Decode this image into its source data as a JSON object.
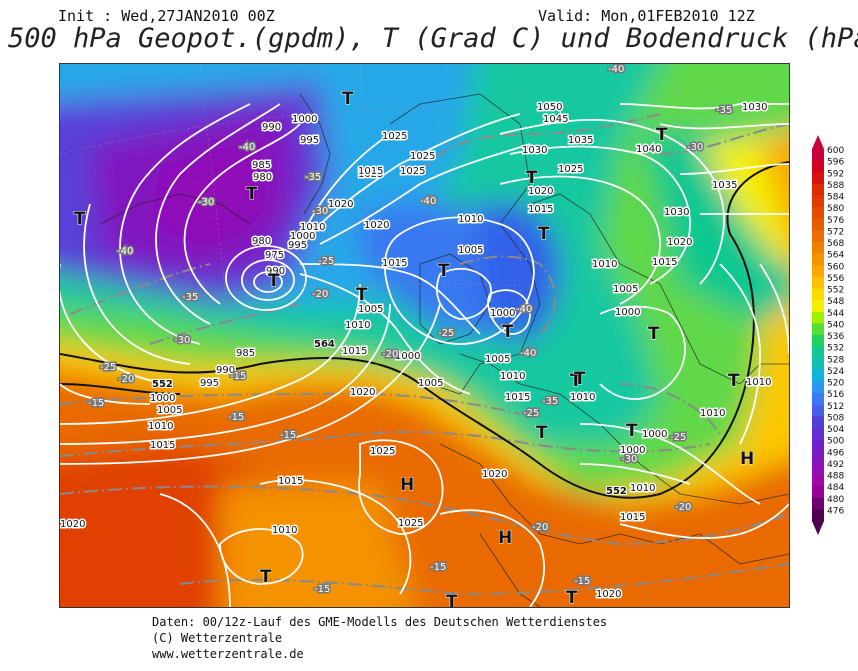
{
  "header": {
    "init": "Init : Wed,27JAN2010 00Z",
    "valid": "Valid: Mon,01FEB2010 12Z",
    "title": "500 hPa Geopot.(gpdm), T (Grad C) und Bodendruck (hPa)"
  },
  "legend": {
    "values": [
      "600",
      "596",
      "592",
      "588",
      "584",
      "580",
      "576",
      "572",
      "568",
      "564",
      "560",
      "556",
      "552",
      "548",
      "544",
      "540",
      "536",
      "532",
      "528",
      "524",
      "520",
      "516",
      "512",
      "508",
      "504",
      "500",
      "496",
      "492",
      "488",
      "484",
      "480",
      "476"
    ],
    "colors": [
      "#c8003c",
      "#d0001e",
      "#d81010",
      "#de2a00",
      "#e03a00",
      "#e44c00",
      "#e85c00",
      "#ec6e00",
      "#f08000",
      "#f49200",
      "#f8a800",
      "#fcc000",
      "#fcdc00",
      "#f4f000",
      "#a0f000",
      "#50e030",
      "#20d060",
      "#10c890",
      "#10c0b8",
      "#10b4d8",
      "#2898f0",
      "#3c78f0",
      "#4860e8",
      "#5040d8",
      "#6030d0",
      "#7020c8",
      "#8018c0",
      "#9010b8",
      "#a008a8",
      "#980098",
      "#700070",
      "#500050"
    ]
  },
  "map": {
    "pressure_labels": [
      {
        "text": "1000",
        "lx": 232,
        "ly": 58
      },
      {
        "text": "995",
        "lx": 240,
        "ly": 79
      },
      {
        "text": "990",
        "lx": 202,
        "ly": 66
      },
      {
        "text": "985",
        "lx": 192,
        "ly": 104
      },
      {
        "text": "980",
        "lx": 193,
        "ly": 116
      },
      {
        "text": "980",
        "lx": 192,
        "ly": 180
      },
      {
        "text": "975",
        "lx": 205,
        "ly": 194
      },
      {
        "text": "990",
        "lx": 206,
        "ly": 210
      },
      {
        "text": "995",
        "lx": 228,
        "ly": 184
      },
      {
        "text": "1000",
        "lx": 230,
        "ly": 175
      },
      {
        "text": "1010",
        "lx": 240,
        "ly": 166
      },
      {
        "text": "1020",
        "lx": 268,
        "ly": 143
      },
      {
        "text": "1025",
        "lx": 298,
        "ly": 113
      },
      {
        "text": "1015",
        "lx": 298,
        "ly": 110
      },
      {
        "text": "1025",
        "lx": 322,
        "ly": 75
      },
      {
        "text": "1025",
        "lx": 350,
        "ly": 95
      },
      {
        "text": "1025",
        "lx": 340,
        "ly": 110
      },
      {
        "text": "1020",
        "lx": 304,
        "ly": 164
      },
      {
        "text": "1015",
        "lx": 322,
        "ly": 202
      },
      {
        "text": "1010",
        "lx": 285,
        "ly": 264
      },
      {
        "text": "1005",
        "lx": 298,
        "ly": 248
      },
      {
        "text": "1015",
        "lx": 282,
        "ly": 290
      },
      {
        "text": "985",
        "lx": 176,
        "ly": 292
      },
      {
        "text": "990",
        "lx": 156,
        "ly": 309
      },
      {
        "text": "995",
        "lx": 140,
        "ly": 322
      },
      {
        "text": "1000",
        "lx": 90,
        "ly": 337
      },
      {
        "text": "1005",
        "lx": 97,
        "ly": 349
      },
      {
        "text": "1010",
        "lx": 88,
        "ly": 365
      },
      {
        "text": "1015",
        "lx": 90,
        "ly": 384
      },
      {
        "text": "1020",
        "lx": 290,
        "ly": 331
      },
      {
        "text": "1025",
        "lx": 310,
        "ly": 390
      },
      {
        "text": "1025",
        "lx": 338,
        "ly": 462
      },
      {
        "text": "1015",
        "lx": 218,
        "ly": 420
      },
      {
        "text": "1010",
        "lx": 212,
        "ly": 469
      },
      {
        "text": "1020",
        "lx": 422,
        "ly": 413
      },
      {
        "text": "1050",
        "lx": 477,
        "ly": 46
      },
      {
        "text": "1045",
        "lx": 483,
        "ly": 58
      },
      {
        "text": "1035",
        "lx": 508,
        "ly": 79
      },
      {
        "text": "1030",
        "lx": 462,
        "ly": 89
      },
      {
        "text": "1025",
        "lx": 498,
        "ly": 108
      },
      {
        "text": "1020",
        "lx": 468,
        "ly": 130
      },
      {
        "text": "1015",
        "lx": 468,
        "ly": 148
      },
      {
        "text": "1010",
        "lx": 398,
        "ly": 158
      },
      {
        "text": "1005",
        "lx": 398,
        "ly": 189
      },
      {
        "text": "1010",
        "lx": 532,
        "ly": 203
      },
      {
        "text": "1015",
        "lx": 592,
        "ly": 201
      },
      {
        "text": "1005",
        "lx": 553,
        "ly": 228
      },
      {
        "text": "1000",
        "lx": 555,
        "ly": 251
      },
      {
        "text": "1000",
        "lx": 430,
        "ly": 252
      },
      {
        "text": "1005",
        "lx": 425,
        "ly": 298
      },
      {
        "text": "1010",
        "lx": 440,
        "ly": 315
      },
      {
        "text": "1015",
        "lx": 445,
        "ly": 336
      },
      {
        "text": "1010",
        "lx": 510,
        "ly": 336
      },
      {
        "text": "1000",
        "lx": 582,
        "ly": 373
      },
      {
        "text": "1000",
        "lx": 560,
        "ly": 389
      },
      {
        "text": "1010",
        "lx": 570,
        "ly": 427
      },
      {
        "text": "1015",
        "lx": 560,
        "ly": 456
      },
      {
        "text": "1010",
        "lx": 640,
        "ly": 352
      },
      {
        "text": "1010",
        "lx": 686,
        "ly": 321
      },
      {
        "text": "1020",
        "lx": 607,
        "ly": 181
      },
      {
        "text": "1030",
        "lx": 604,
        "ly": 151
      },
      {
        "text": "1035",
        "lx": 652,
        "ly": 124
      },
      {
        "text": "1040",
        "lx": 576,
        "ly": 88
      },
      {
        "text": "1030",
        "lx": 682,
        "ly": 46
      },
      {
        "text": "1000",
        "lx": 335,
        "ly": 295
      },
      {
        "text": "1020",
        "lx": 0,
        "ly": 463
      },
      {
        "text": "1020",
        "lx": 536,
        "ly": 533
      },
      {
        "text": "1005",
        "lx": 358,
        "ly": 322
      }
    ],
    "temp_labels": [
      {
        "text": "-40",
        "lx": 548,
        "ly": 8
      },
      {
        "text": "-35",
        "lx": 656,
        "ly": 49
      },
      {
        "text": "-30",
        "lx": 627,
        "ly": 86
      },
      {
        "text": "-35",
        "lx": 245,
        "ly": 116
      },
      {
        "text": "-30",
        "lx": 252,
        "ly": 150
      },
      {
        "text": "-25",
        "lx": 258,
        "ly": 200
      },
      {
        "text": "-20",
        "lx": 252,
        "ly": 233
      },
      {
        "text": "-40",
        "lx": 179,
        "ly": 86
      },
      {
        "text": "-30",
        "lx": 138,
        "ly": 141
      },
      {
        "text": "-40",
        "lx": 57,
        "ly": 190
      },
      {
        "text": "-35",
        "lx": 122,
        "ly": 236
      },
      {
        "text": "-30",
        "lx": 114,
        "ly": 279
      },
      {
        "text": "-25",
        "lx": 40,
        "ly": 306
      },
      {
        "text": "-20",
        "lx": 58,
        "ly": 318
      },
      {
        "text": "-15",
        "lx": 28,
        "ly": 342
      },
      {
        "text": "-15",
        "lx": 170,
        "ly": 315
      },
      {
        "text": "-15",
        "lx": 168,
        "ly": 356
      },
      {
        "text": "-15",
        "lx": 220,
        "ly": 374
      },
      {
        "text": "-40",
        "lx": 360,
        "ly": 140
      },
      {
        "text": "-40",
        "lx": 456,
        "ly": 248
      },
      {
        "text": "-40",
        "lx": 460,
        "ly": 292
      },
      {
        "text": "-35",
        "lx": 482,
        "ly": 340
      },
      {
        "text": "-25",
        "lx": 463,
        "ly": 352
      },
      {
        "text": "-30",
        "lx": 561,
        "ly": 398
      },
      {
        "text": "-25",
        "lx": 610,
        "ly": 376
      },
      {
        "text": "-20",
        "lx": 615,
        "ly": 446
      },
      {
        "text": "-20",
        "lx": 472,
        "ly": 466
      },
      {
        "text": "-15",
        "lx": 370,
        "ly": 506
      },
      {
        "text": "-15",
        "lx": 514,
        "ly": 520
      },
      {
        "text": "-15",
        "lx": 254,
        "ly": 528
      },
      {
        "text": "-20",
        "lx": 322,
        "ly": 293
      },
      {
        "text": "-25",
        "lx": 378,
        "ly": 272
      }
    ],
    "geopot_labels": [
      {
        "text": "564",
        "lx": 254,
        "ly": 283
      },
      {
        "text": "552",
        "lx": 92,
        "ly": 323
      },
      {
        "text": "552",
        "lx": 546,
        "ly": 430
      }
    ],
    "lows": [
      {
        "text": "T",
        "lx": 14,
        "ly": 160
      },
      {
        "text": "T",
        "lx": 186,
        "ly": 135
      },
      {
        "text": "T",
        "lx": 208,
        "ly": 222
      },
      {
        "text": "T",
        "lx": 378,
        "ly": 212
      },
      {
        "text": "T",
        "lx": 466,
        "ly": 119
      },
      {
        "text": "T",
        "lx": 478,
        "ly": 175
      },
      {
        "text": "T",
        "lx": 442,
        "ly": 273
      },
      {
        "text": "T",
        "lx": 588,
        "ly": 275
      },
      {
        "text": "T",
        "lx": 510,
        "ly": 322
      },
      {
        "text": "T",
        "lx": 476,
        "ly": 374
      },
      {
        "text": "T",
        "lx": 566,
        "ly": 372
      },
      {
        "text": "T",
        "lx": 200,
        "ly": 518
      },
      {
        "text": "T",
        "lx": 668,
        "ly": 322
      },
      {
        "text": "T",
        "lx": 596,
        "ly": 76
      },
      {
        "text": "T",
        "lx": 296,
        "ly": 236
      },
      {
        "text": "T",
        "lx": 282,
        "ly": 40
      },
      {
        "text": "T",
        "lx": 386,
        "ly": 543
      },
      {
        "text": "T",
        "lx": 506,
        "ly": 539
      },
      {
        "text": "T",
        "lx": 514,
        "ly": 320
      }
    ],
    "highs": [
      {
        "text": "H",
        "lx": 340,
        "ly": 426
      },
      {
        "text": "H",
        "lx": 438,
        "ly": 479
      },
      {
        "text": "H",
        "lx": 680,
        "ly": 400
      }
    ]
  },
  "footer": {
    "line1": "Daten: 00/12z-Lauf des GME-Modells des Deutschen Wetterdienstes",
    "line2": "(C) Wetterzentrale",
    "line3": "www.wetterzentrale.de"
  }
}
